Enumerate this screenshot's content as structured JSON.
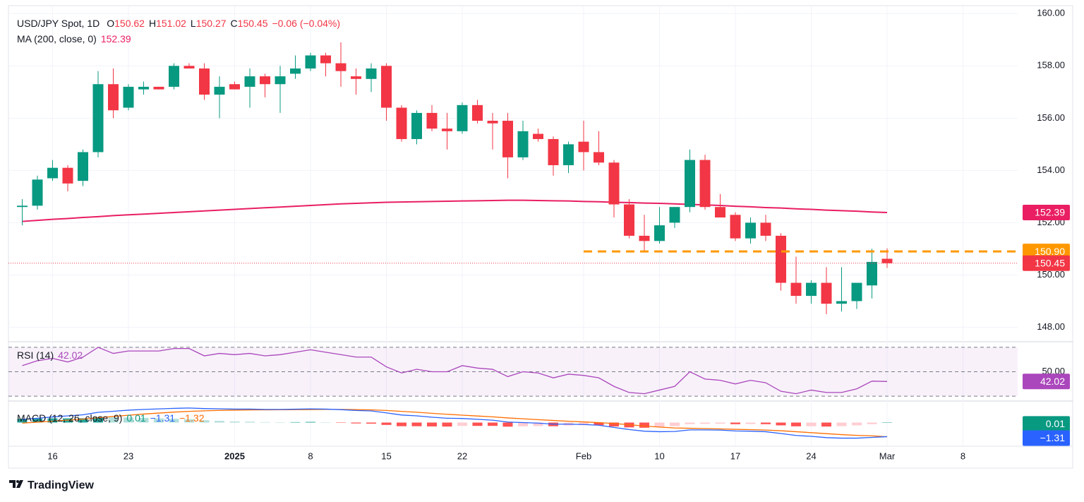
{
  "chart_data": {
    "type": "candlestick",
    "title": "USD/JPY Spot, 1D",
    "ohlc": [
      {
        "key": "O",
        "value": "150.62"
      },
      {
        "key": "H",
        "value": "151.02"
      },
      {
        "key": "L",
        "value": "150.27"
      },
      {
        "key": "C",
        "value": "150.45"
      }
    ],
    "change": "−0.06 (−0.04%)",
    "open": [
      152.6,
      152.65,
      153.7,
      154.1,
      153.6,
      154.7,
      157.3,
      156.4,
      157.1,
      157.2,
      157.2,
      158.0,
      157.9,
      156.9,
      157.3,
      157.2,
      157.6,
      157.3,
      157.7,
      157.9,
      158.4,
      158.1,
      157.6,
      157.5,
      158.0,
      156.4,
      155.2,
      156.2,
      155.6,
      155.5,
      156.5,
      155.9,
      155.9,
      154.5,
      155.4,
      155.2,
      154.2,
      155.1,
      154.7,
      154.3,
      152.7,
      151.5,
      151.3,
      152.0,
      152.6,
      154.4,
      152.6,
      152.3,
      151.4,
      152.0,
      151.5,
      149.7,
      149.2,
      149.7,
      148.9,
      149.0,
      149.6,
      150.62
    ],
    "high": [
      152.9,
      153.8,
      154.4,
      154.2,
      154.8,
      157.8,
      157.9,
      157.3,
      157.4,
      157.2,
      158.1,
      158.1,
      158.1,
      157.6,
      157.4,
      157.9,
      157.7,
      158.0,
      158.4,
      158.5,
      158.5,
      158.9,
      157.9,
      158.1,
      158.1,
      156.5,
      156.3,
      156.5,
      156.2,
      156.6,
      156.7,
      156.2,
      156.2,
      155.9,
      155.6,
      155.3,
      155.1,
      155.9,
      155.5,
      154.4,
      152.9,
      152.3,
      152.6,
      152.6,
      154.8,
      154.6,
      153.1,
      152.4,
      152.2,
      152.3,
      151.6,
      150.7,
      149.8,
      150.3,
      150.3,
      149.7,
      151.0,
      151.02
    ],
    "low": [
      151.9,
      152.5,
      153.6,
      153.2,
      153.4,
      154.5,
      156.0,
      156.3,
      156.9,
      157.1,
      157.1,
      157.9,
      156.7,
      156.0,
      157.1,
      156.4,
      156.8,
      156.2,
      157.5,
      157.8,
      157.6,
      157.2,
      156.9,
      157.0,
      155.9,
      155.1,
      155.0,
      155.5,
      154.8,
      155.4,
      155.8,
      154.8,
      153.7,
      154.4,
      155.1,
      153.8,
      153.9,
      154.0,
      154.2,
      152.2,
      151.4,
      150.9,
      151.2,
      151.8,
      152.4,
      152.5,
      152.2,
      151.3,
      151.2,
      151.3,
      149.4,
      148.9,
      148.9,
      148.5,
      148.6,
      148.7,
      149.1,
      150.27
    ],
    "close": [
      152.65,
      153.65,
      154.1,
      153.5,
      154.7,
      157.3,
      156.3,
      157.2,
      157.2,
      157.1,
      158.0,
      157.9,
      156.9,
      157.2,
      157.1,
      157.6,
      157.3,
      157.6,
      157.9,
      158.4,
      158.1,
      157.8,
      157.5,
      157.9,
      156.4,
      155.2,
      156.2,
      155.6,
      155.5,
      156.5,
      155.9,
      155.8,
      154.5,
      155.5,
      155.2,
      154.2,
      155.0,
      154.7,
      154.3,
      152.7,
      151.5,
      151.3,
      151.9,
      152.6,
      154.4,
      152.6,
      152.2,
      151.4,
      152.0,
      151.5,
      149.7,
      149.2,
      149.7,
      148.9,
      149.0,
      149.7,
      150.5,
      150.45
    ],
    "up_color": "#089981",
    "down_color": "#f23645",
    "ylim": [
      147.5,
      160.25
    ],
    "yticks": [
      {
        "value": 148,
        "label": "148.00"
      },
      {
        "value": 150,
        "label": "150.00"
      },
      {
        "value": 152,
        "label": "152.00"
      },
      {
        "value": 154,
        "label": "154.00"
      },
      {
        "value": 156,
        "label": "156.00"
      },
      {
        "value": 158,
        "label": "158.00"
      },
      {
        "value": 160,
        "label": "160.00"
      }
    ],
    "xticks": [
      {
        "value": 2,
        "label": "16"
      },
      {
        "value": 7,
        "label": "23"
      },
      {
        "value": 14,
        "label": "2025"
      },
      {
        "value": 19,
        "label": "8"
      },
      {
        "value": 24,
        "label": "15"
      },
      {
        "value": 29,
        "label": "22"
      },
      {
        "value": 37,
        "label": "Feb"
      },
      {
        "value": 42,
        "label": "10"
      },
      {
        "value": 47,
        "label": "17"
      },
      {
        "value": 52,
        "label": "24"
      },
      {
        "value": 57,
        "label": "Mar"
      },
      {
        "value": 62,
        "label": "8"
      }
    ],
    "grid": true,
    "series": [
      {
        "name": "MA (200, close, 0)",
        "color": "#e91e63",
        "value_label": "152.39",
        "values": [
          152.05,
          152.09,
          152.13,
          152.16,
          152.2,
          152.23,
          152.27,
          152.3,
          152.33,
          152.36,
          152.39,
          152.42,
          152.45,
          152.48,
          152.51,
          152.54,
          152.57,
          152.6,
          152.63,
          152.66,
          152.69,
          152.72,
          152.74,
          152.76,
          152.78,
          152.79,
          152.8,
          152.81,
          152.82,
          152.83,
          152.84,
          152.85,
          152.86,
          152.86,
          152.85,
          152.84,
          152.83,
          152.81,
          152.8,
          152.78,
          152.77,
          152.75,
          152.74,
          152.72,
          152.7,
          152.68,
          152.66,
          152.63,
          152.61,
          152.58,
          152.56,
          152.53,
          152.51,
          152.48,
          152.46,
          152.44,
          152.41,
          152.39
        ]
      }
    ],
    "levels": [
      {
        "value": 150.9,
        "value_label": "150.90",
        "color": "#ff9800",
        "style": "dashed"
      },
      {
        "value": 150.45,
        "value_label": "150.45",
        "color": "#f23645",
        "style": "dotted"
      }
    ],
    "rsi": {
      "name": "RSI (14)",
      "color": "#ab47bc",
      "value_label": "42.02",
      "ylim": [
        26,
        74
      ],
      "levels": [
        70,
        50,
        30
      ],
      "yticks": [
        {
          "value": 50,
          "label": "50.00"
        }
      ],
      "values": [
        55,
        59,
        61,
        58,
        62,
        70,
        65,
        67,
        67,
        67,
        69,
        69,
        63,
        65,
        64,
        65,
        63,
        64,
        66,
        68,
        66,
        64,
        62,
        62,
        54,
        49,
        52,
        50,
        50,
        55,
        53,
        52,
        46,
        50,
        49,
        45,
        48,
        47,
        45,
        38,
        33,
        32,
        35,
        38,
        50,
        44,
        43,
        40,
        43,
        41,
        34,
        32,
        35,
        33,
        33,
        36,
        42.3,
        42.02
      ]
    },
    "macd": {
      "name": "MACD (12, 26, close, 9)",
      "ylim": [
        -2.2,
        2.0
      ],
      "value_labels": [
        "0.01",
        "−1.31",
        "−1.32"
      ],
      "colors": {
        "histogram": "#089981",
        "macd": "#2962ff",
        "signal": "#ff6d00"
      },
      "histogram_colors": [
        "#26a69a",
        "#b2dfdb",
        "#ff5252",
        "#ffcdd2"
      ],
      "macd": [
        0.3,
        0.4,
        0.52,
        0.62,
        0.72,
        0.95,
        1.05,
        1.15,
        1.22,
        1.27,
        1.32,
        1.35,
        1.3,
        1.28,
        1.25,
        1.25,
        1.22,
        1.22,
        1.24,
        1.27,
        1.25,
        1.2,
        1.12,
        1.08,
        0.9,
        0.7,
        0.62,
        0.5,
        0.4,
        0.38,
        0.3,
        0.22,
        0.05,
        0,
        -0.05,
        -0.15,
        -0.15,
        -0.18,
        -0.25,
        -0.45,
        -0.65,
        -0.8,
        -0.85,
        -0.83,
        -0.68,
        -0.68,
        -0.7,
        -0.78,
        -0.8,
        -0.85,
        -1.02,
        -1.2,
        -1.28,
        -1.4,
        -1.45,
        -1.45,
        -1.38,
        -1.31
      ],
      "signal": [
        -0.05,
        0.03,
        0.13,
        0.23,
        0.32,
        0.45,
        0.57,
        0.68,
        0.79,
        0.88,
        0.97,
        1.04,
        1.09,
        1.13,
        1.15,
        1.17,
        1.18,
        1.19,
        1.2,
        1.21,
        1.22,
        1.22,
        1.2,
        1.18,
        1.12,
        1.04,
        0.96,
        0.86,
        0.77,
        0.69,
        0.61,
        0.53,
        0.43,
        0.35,
        0.27,
        0.19,
        0.12,
        0.06,
        0,
        -0.09,
        -0.2,
        -0.32,
        -0.42,
        -0.5,
        -0.53,
        -0.56,
        -0.59,
        -0.63,
        -0.66,
        -0.7,
        -0.76,
        -0.85,
        -0.94,
        -1.03,
        -1.12,
        -1.19,
        -1.23,
        -1.32
      ],
      "histogram": [
        0.35,
        0.37,
        0.39,
        0.39,
        0.4,
        0.5,
        0.48,
        0.47,
        0.43,
        0.39,
        0.35,
        0.31,
        0.21,
        0.15,
        0.1,
        0.08,
        0.04,
        0.03,
        0.04,
        0.06,
        0.03,
        -0.02,
        -0.08,
        -0.1,
        -0.22,
        -0.34,
        -0.34,
        -0.36,
        -0.37,
        -0.31,
        -0.31,
        -0.31,
        -0.38,
        -0.35,
        -0.32,
        -0.34,
        -0.27,
        -0.24,
        -0.25,
        -0.36,
        -0.45,
        -0.48,
        -0.43,
        -0.33,
        -0.15,
        -0.12,
        -0.11,
        -0.15,
        -0.14,
        -0.15,
        -0.26,
        -0.35,
        -0.34,
        -0.37,
        -0.33,
        -0.26,
        -0.15,
        0.01
      ]
    }
  },
  "branding": "TradingView"
}
